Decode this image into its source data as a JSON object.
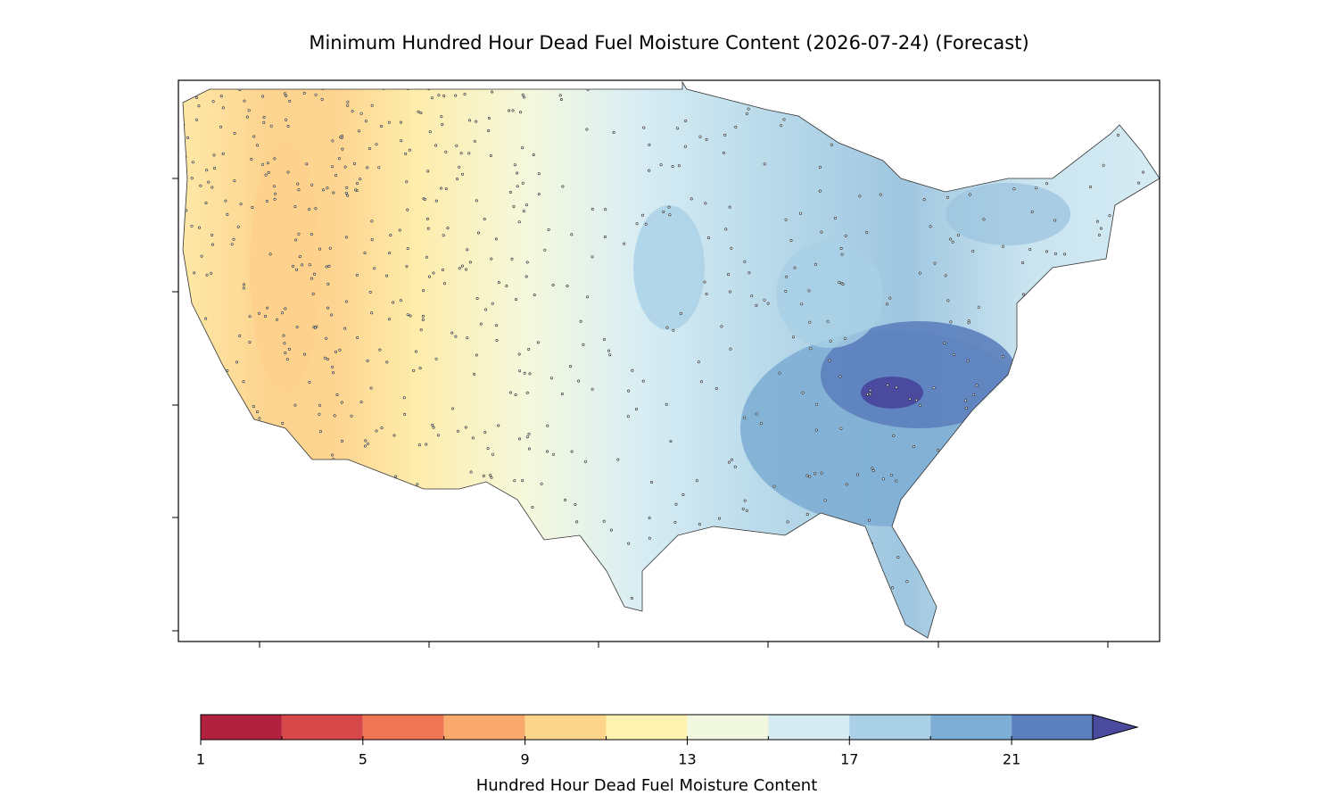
{
  "map": {
    "title": "Minimum Hundred Hour Dead Fuel Moisture Content (2026-07-24) (Forecast)",
    "colorbar": {
      "label": "Hundred Hour Dead Fuel Moisture Content",
      "bounds": [
        1,
        3,
        5,
        7,
        9,
        11,
        13,
        15,
        17,
        19,
        21,
        23
      ],
      "ticks": [
        1,
        5,
        9,
        13,
        17,
        21
      ],
      "colors": [
        "#b2223f",
        "#d6484a",
        "#ee7654",
        "#f9a96b",
        "#fdd58a",
        "#fdf2b0",
        "#f2f8df",
        "#d6ebf2",
        "#a9d0e6",
        "#7eaed4",
        "#5c80bd"
      ],
      "extend_color": "#4a4a9f"
    }
  }
}
